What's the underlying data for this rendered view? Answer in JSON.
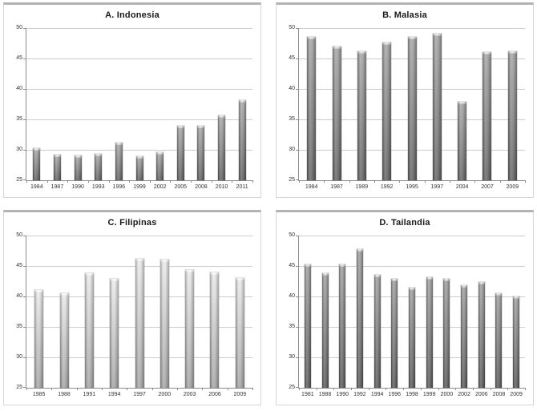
{
  "figure": {
    "background": "#ffffff",
    "panel_border_color": "#b3b3b3",
    "gridline_color": "#cccccc",
    "axis_color": "#8c8c8c",
    "label_color": "#333333",
    "title_color": "#1a1a1a"
  },
  "chart_data": [
    {
      "type": "bar",
      "title": "A. Indonesia",
      "categories": [
        "1984",
        "1987",
        "1990",
        "1993",
        "1996",
        "1999",
        "2002",
        "2005",
        "2008",
        "2010",
        "2011"
      ],
      "values": [
        30.3,
        29.2,
        29.1,
        29.3,
        31.2,
        28.9,
        29.6,
        34.0,
        34.0,
        35.6,
        38.2
      ],
      "xlabel": "",
      "ylabel": "",
      "ylim": [
        25,
        50
      ],
      "yticks": [
        25,
        30,
        35,
        40,
        45,
        50
      ],
      "grid": true,
      "legend": null,
      "bar_color_top": "#a8a8a8",
      "bar_color_bottom": "#5e5e5e"
    },
    {
      "type": "bar",
      "title": "B. Malasia",
      "categories": [
        "1984",
        "1987",
        "1989",
        "1992",
        "1995",
        "1997",
        "2004",
        "2007",
        "2009"
      ],
      "values": [
        48.6,
        47.0,
        46.2,
        47.6,
        48.5,
        49.1,
        37.9,
        46.0,
        46.2
      ],
      "xlabel": "",
      "ylabel": "",
      "ylim": [
        25,
        50
      ],
      "yticks": [
        25,
        30,
        35,
        40,
        45,
        50
      ],
      "grid": true,
      "legend": null,
      "bar_color_top": "#a3a3a3",
      "bar_color_bottom": "#606060"
    },
    {
      "type": "bar",
      "title": "C. Filipinas",
      "categories": [
        "1985",
        "1988",
        "1991",
        "1994",
        "1997",
        "2000",
        "2003",
        "2006",
        "2009"
      ],
      "values": [
        41.0,
        40.5,
        43.8,
        42.9,
        46.2,
        46.1,
        44.4,
        44.0,
        43.0
      ],
      "xlabel": "",
      "ylabel": "",
      "ylim": [
        25,
        50
      ],
      "yticks": [
        25,
        30,
        35,
        40,
        45,
        50
      ],
      "grid": true,
      "legend": null,
      "bar_color_top": "#e9e9e9",
      "bar_color_bottom": "#a2a2a2"
    },
    {
      "type": "bar",
      "title": "D. Tailandia",
      "categories": [
        "1981",
        "1988",
        "1990",
        "1992",
        "1994",
        "1996",
        "1998",
        "1999",
        "2000",
        "2002",
        "2006",
        "2008",
        "2009"
      ],
      "values": [
        45.2,
        43.8,
        45.2,
        47.8,
        43.5,
        42.9,
        41.5,
        43.1,
        42.9,
        41.9,
        42.4,
        40.5,
        40.0
      ],
      "xlabel": "",
      "ylabel": "",
      "ylim": [
        25,
        50
      ],
      "yticks": [
        25,
        30,
        35,
        40,
        45,
        50
      ],
      "grid": true,
      "legend": null,
      "bar_color_top": "#9e9e9e",
      "bar_color_bottom": "#575757"
    }
  ]
}
